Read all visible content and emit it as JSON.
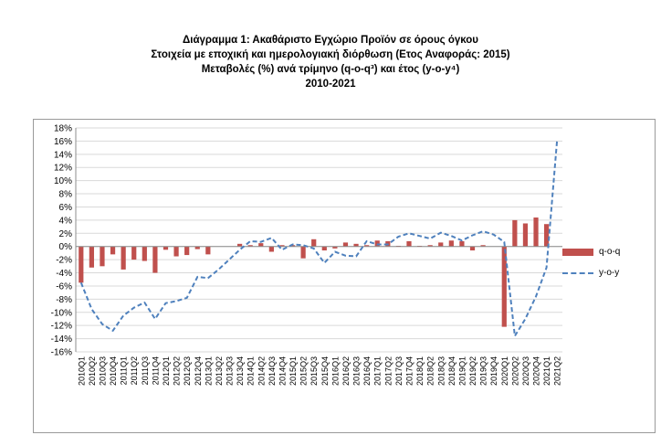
{
  "title": {
    "line1": "Διάγραμμα 1: Ακαθάριστο Εγχώριο Προϊόν σε όρους όγκου",
    "line2": "Στοιχεία με εποχική και ημερολογιακή διόρθωση (Ετος Αναφοράς: 2015)",
    "line3": "Μεταβολές (%) ανά τρίμηνο (q-o-q³) και έτος (y-o-y⁴)",
    "line4": "2010-2021"
  },
  "chart_data": {
    "type": "bar",
    "categories": [
      "2010Q1",
      "2010Q2",
      "2010Q3",
      "2010Q4",
      "2011Q1",
      "2011Q2",
      "2011Q3",
      "2011Q4",
      "2012Q1",
      "2012Q2",
      "2012Q3",
      "2012Q4",
      "2013Q1",
      "2013Q2",
      "2013Q3",
      "2013Q4",
      "2014Q1",
      "2014Q2",
      "2014Q3",
      "2014Q4",
      "2015Q1",
      "2015Q2",
      "2015Q3",
      "2015Q4",
      "2016Q1",
      "2016Q2",
      "2016Q3",
      "2016Q4",
      "2017Q1",
      "2017Q2",
      "2017Q3",
      "2017Q4",
      "2018Q1",
      "2018Q2",
      "2018Q3",
      "2018Q4",
      "2019Q1",
      "2019Q2",
      "2019Q3",
      "2019Q4",
      "2020Q1",
      "2020Q2",
      "2020Q3",
      "2020Q4",
      "2021Q1",
      "2021Q2"
    ],
    "series": [
      {
        "name": "q-o-q",
        "type": "bar",
        "values": [
          -5.5,
          -3.2,
          -3.0,
          -1.2,
          -3.5,
          -2.0,
          -2.2,
          -4.0,
          -0.5,
          -1.5,
          -1.3,
          -0.4,
          -1.2,
          0.0,
          0.0,
          0.4,
          0.2,
          0.5,
          -0.8,
          0.2,
          0.2,
          -1.8,
          1.1,
          -0.6,
          -0.3,
          0.6,
          0.4,
          0.2,
          0.9,
          0.8,
          0.1,
          0.8,
          0.1,
          0.2,
          0.6,
          0.9,
          0.8,
          -0.6,
          0.2,
          0.0,
          -12.2,
          4.0,
          3.5,
          4.4,
          3.4,
          0.0
        ]
      },
      {
        "name": "y-o-y",
        "type": "line",
        "values": [
          -5.5,
          -9.5,
          -11.8,
          -12.8,
          -10.5,
          -9.3,
          -8.5,
          -11.0,
          -8.6,
          -8.3,
          -7.8,
          -4.6,
          -4.8,
          -3.5,
          -2.0,
          -0.5,
          0.8,
          0.7,
          1.3,
          -0.5,
          0.3,
          0.2,
          -0.3,
          -2.5,
          -0.8,
          -1.4,
          -1.5,
          0.8,
          0.3,
          0.3,
          1.5,
          2.0,
          1.6,
          1.2,
          2.1,
          1.6,
          0.9,
          1.7,
          2.3,
          1.8,
          0.7,
          -13.6,
          -11.0,
          -7.6,
          -3.2,
          16.2
        ]
      }
    ],
    "y_tick_labels": [
      "18%",
      "16%",
      "14%",
      "12%",
      "10%",
      "8%",
      "6%",
      "4%",
      "2%",
      "0%",
      "-2%",
      "-4%",
      "-6%",
      "-8%",
      "-10%",
      "-12%",
      "-14%",
      "-16%"
    ],
    "x_tick_labels": [
      "2010Q1",
      "2010Q2",
      "2010Q3",
      "2010Q4",
      "2011Q1",
      "2011Q2",
      "2011Q3",
      "2011Q4",
      "2012Q1",
      "2012Q2",
      "2012Q3",
      "2012Q4",
      "2013Q1",
      "2013Q2",
      "2013Q3",
      "2013Q4",
      "2014Q1",
      "2014Q2",
      "2014Q3",
      "2014Q4",
      "2015Q1",
      "2015Q2",
      "2015Q3",
      "2015Q4",
      "2016Q1",
      "2016Q2",
      "2016Q3",
      "2016Q4",
      "2017Q1",
      "2017Q2",
      "2017Q3",
      "2017Q4",
      "2018Q1",
      "2018Q2",
      "2018Q3",
      "2018Q4",
      "2019Q1",
      "2019Q2",
      "2019Q3",
      "2019Q4",
      "2020Q1",
      "2020Q2",
      "2020Q3",
      "2020Q4",
      "2021Q1",
      "2021Q2"
    ],
    "ylim": [
      -16,
      18
    ],
    "grid": true,
    "legend_position": "right",
    "colors": {
      "bar": "#c0504d",
      "line": "#4f81bd",
      "grid": "#d9d9d9"
    }
  }
}
